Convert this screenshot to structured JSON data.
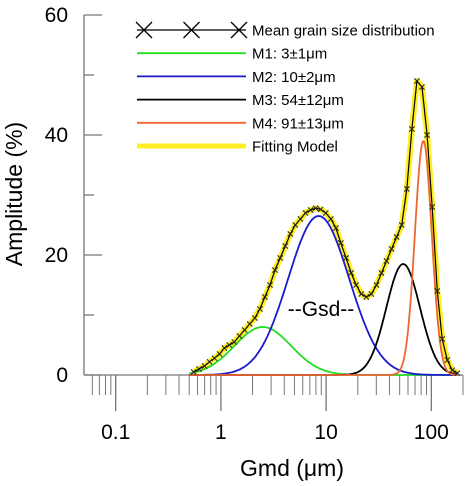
{
  "chart_data": {
    "type": "line",
    "xlabel": "Gmd (μm)",
    "ylabel": "Amplitude (%)",
    "x_scale": "log",
    "xlim": [
      0.05,
      200
    ],
    "ylim": [
      0,
      60
    ],
    "x_ticks": [
      0.1,
      1,
      10,
      100
    ],
    "x_tick_labels": [
      "0.1",
      "1",
      "10",
      "100"
    ],
    "y_ticks": [
      0,
      20,
      40,
      60
    ],
    "y_tick_labels": [
      "0",
      "20",
      "40",
      "60"
    ],
    "grid": false,
    "legend_position": "top-right",
    "annotation": "--Gsd--",
    "series": [
      {
        "name": "Mean grain size distribution",
        "color": "#000000",
        "marker": "x",
        "x": [
          0.55,
          0.62,
          0.7,
          0.78,
          0.87,
          0.97,
          1.08,
          1.2,
          1.34,
          1.5,
          1.68,
          1.88,
          2.1,
          2.35,
          2.62,
          2.93,
          3.27,
          3.66,
          4.09,
          4.57,
          5.1,
          5.7,
          6.37,
          7.12,
          7.95,
          8.88,
          9.93,
          11.1,
          12.4,
          13.8,
          15.5,
          17.3,
          19.3,
          21.6,
          24.1,
          26.9,
          30.1,
          33.6,
          37.5,
          41.9,
          46.8,
          52.3,
          58.5,
          65.3,
          73.0,
          81.5,
          91.1,
          102,
          114,
          127,
          142,
          158,
          177
        ],
        "y": [
          0.5,
          1.0,
          1.5,
          2.2,
          2.8,
          3.5,
          4.5,
          5.0,
          5.5,
          6.5,
          7.5,
          8.5,
          9.5,
          11.0,
          13.0,
          15.0,
          17.5,
          19.5,
          21.5,
          23.5,
          25.0,
          26.0,
          27.0,
          27.5,
          27.8,
          27.6,
          27.0,
          26.0,
          24.5,
          22.0,
          19.5,
          17.0,
          15.0,
          13.5,
          13.0,
          13.5,
          15.0,
          17.0,
          19.0,
          21.0,
          23.0,
          25.0,
          31.0,
          41.0,
          49.0,
          48.0,
          40.0,
          28.0,
          14.0,
          6.0,
          2.5,
          0.8,
          0.3
        ]
      },
      {
        "name": "M1: 3±1μm",
        "color": "#22dd22",
        "peak_x": 2.5,
        "peak_y": 8.0,
        "log_sigma": 0.27
      },
      {
        "name": "M2: 10±2μm",
        "color": "#1a1acc",
        "peak_x": 8.5,
        "peak_y": 26.5,
        "log_sigma": 0.29
      },
      {
        "name": "M3: 54±12μm",
        "color": "#000000",
        "peak_x": 54,
        "peak_y": 18.5,
        "log_sigma": 0.16
      },
      {
        "name": "M4: 91±13μm",
        "color": "#ee6633",
        "peak_x": 84,
        "peak_y": 39.0,
        "log_sigma": 0.08
      },
      {
        "name": "Fitting Model",
        "color": "#ffee22"
      }
    ]
  }
}
